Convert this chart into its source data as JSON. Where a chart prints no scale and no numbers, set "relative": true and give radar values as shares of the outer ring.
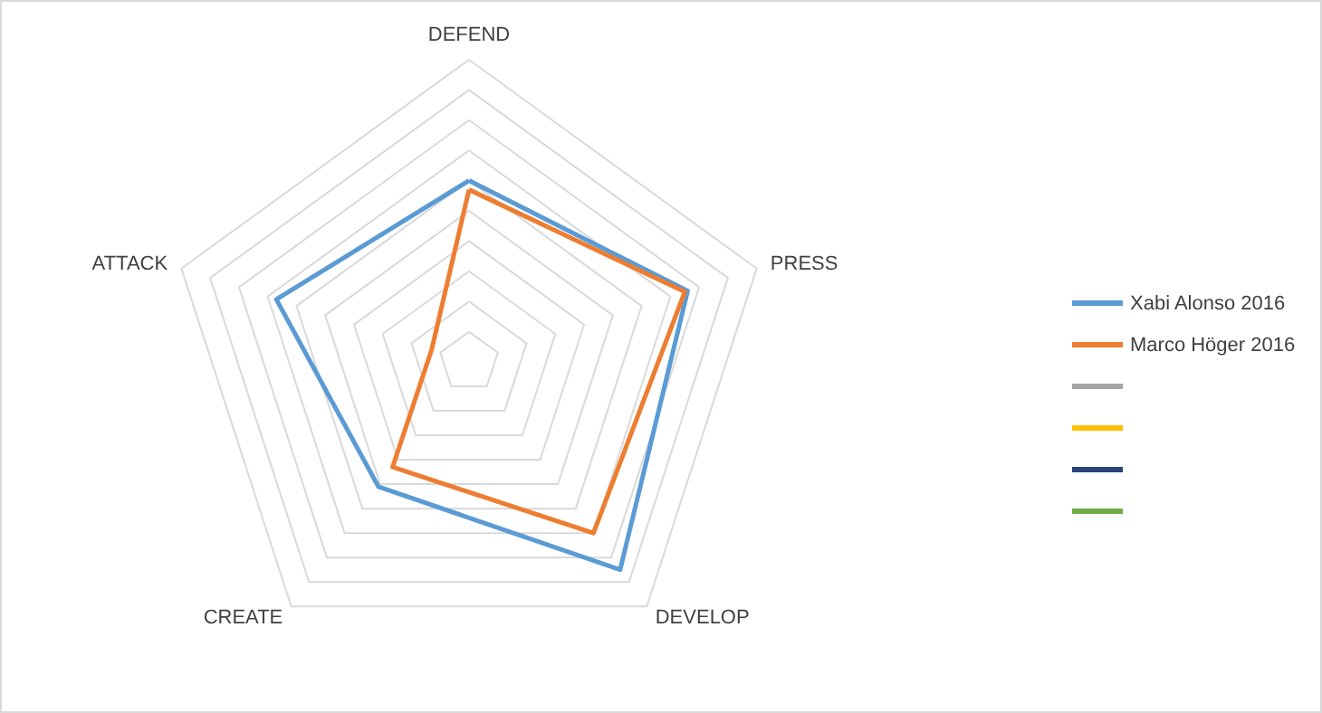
{
  "chart_data": {
    "type": "radar",
    "relative": true,
    "categories": [
      "DEFEND",
      "PRESS",
      "DEVELOP",
      "CREATE",
      "ATTACK"
    ],
    "legend": "right",
    "series": [
      {
        "name": "Xabi Alonso 2016",
        "color": "#5b9bd5",
        "values": [
          0.6,
          0.76,
          0.85,
          0.51,
          0.67
        ]
      },
      {
        "name": "Marco Höger 2016",
        "color": "#ed7d31",
        "values": [
          0.57,
          0.75,
          0.7,
          0.43,
          0.13
        ]
      }
    ]
  }
}
